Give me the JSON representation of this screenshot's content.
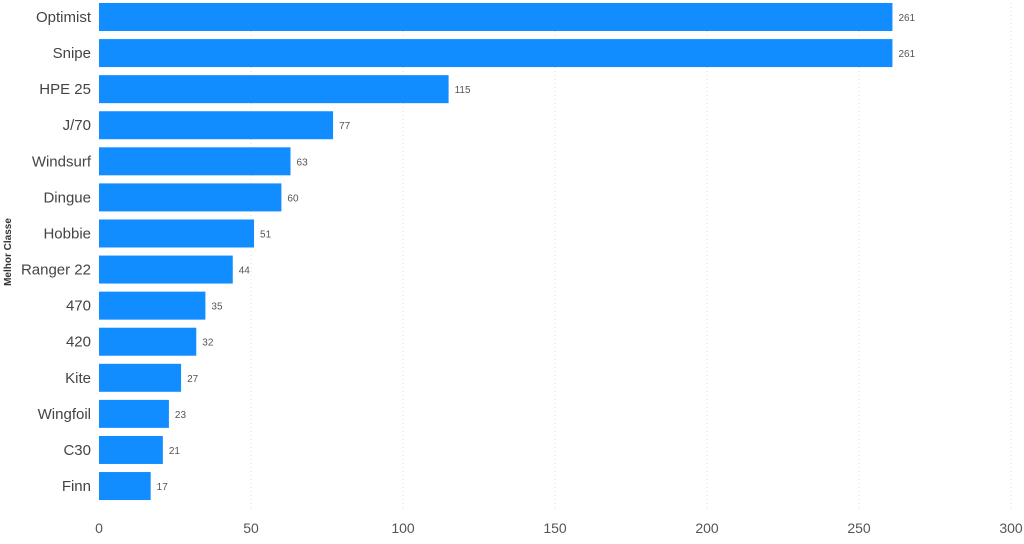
{
  "chart_data": {
    "type": "bar",
    "orientation": "horizontal",
    "ylabel": "Melhor Classe",
    "xlabel": "",
    "categories": [
      "Optimist",
      "Snipe",
      "HPE 25",
      "J/70",
      "Windsurf",
      "Dingue",
      "Hobbie",
      "Ranger 22",
      "470",
      "420",
      "Kite",
      "Wingfoil",
      "C30",
      "Finn"
    ],
    "values": [
      261,
      261,
      115,
      77,
      63,
      60,
      51,
      44,
      35,
      32,
      27,
      23,
      21,
      17
    ],
    "xlim": [
      0,
      300
    ],
    "x_ticks": [
      0,
      50,
      100,
      150,
      200,
      250,
      300
    ],
    "grid": true,
    "bar_color": "#118DFF",
    "data_labels": true
  }
}
